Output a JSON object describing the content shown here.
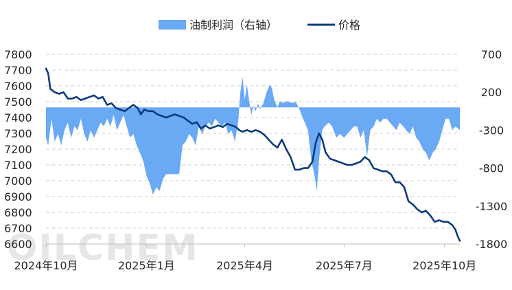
{
  "chart_data": {
    "type": "combo",
    "legend": {
      "position": "top-center",
      "items": [
        {
          "name": "油制利润（右轴）",
          "type": "area",
          "color": "#6aa9f4"
        },
        {
          "name": "价格",
          "type": "line",
          "color": "#0d3a7a"
        }
      ]
    },
    "watermark": "OILCHEM",
    "x_axis": {
      "type": "date",
      "range": [
        "2024-10-08",
        "2025-10-22"
      ],
      "ticks": [
        {
          "date": "2024-10-08",
          "label": "2024年10月"
        },
        {
          "date": "2025-01-08",
          "label": "2025年1月"
        },
        {
          "date": "2025-04-08",
          "label": "2025年4月"
        },
        {
          "date": "2025-07-08",
          "label": "2025年7月"
        },
        {
          "date": "2025-10-08",
          "label": "2025年10月"
        }
      ]
    },
    "y_left": {
      "min": 6600,
      "max": 7800,
      "ticks": [
        7800,
        7700,
        7600,
        7500,
        7400,
        7300,
        7200,
        7100,
        7000,
        6900,
        6800,
        6700,
        6600
      ]
    },
    "y_right": {
      "min": -1800,
      "max": 700,
      "ticks": [
        700,
        200,
        -300,
        -800,
        -1300,
        -1800
      ]
    },
    "grid": true,
    "series": [
      {
        "name": "油制利润（右轴）",
        "axis": "right",
        "type": "area",
        "points": [
          [
            "2024-10-08",
            -400
          ],
          [
            "2024-10-10",
            -500
          ],
          [
            "2024-10-13",
            -150
          ],
          [
            "2024-10-16",
            -450
          ],
          [
            "2024-10-19",
            -350
          ],
          [
            "2024-10-22",
            -500
          ],
          [
            "2024-10-25",
            -300
          ],
          [
            "2024-10-28",
            -200
          ],
          [
            "2024-10-31",
            -400
          ],
          [
            "2024-11-03",
            -250
          ],
          [
            "2024-11-06",
            -300
          ],
          [
            "2024-11-09",
            -150
          ],
          [
            "2024-11-12",
            -350
          ],
          [
            "2024-11-15",
            -450
          ],
          [
            "2024-11-18",
            -300
          ],
          [
            "2024-11-21",
            -400
          ],
          [
            "2024-11-24",
            -300
          ],
          [
            "2024-11-27",
            -200
          ],
          [
            "2024-11-30",
            -250
          ],
          [
            "2024-12-03",
            -150
          ],
          [
            "2024-12-06",
            -250
          ],
          [
            "2024-12-09",
            -100
          ],
          [
            "2024-12-12",
            -300
          ],
          [
            "2024-12-15",
            -200
          ],
          [
            "2024-12-18",
            -100
          ],
          [
            "2024-12-21",
            -250
          ],
          [
            "2024-12-24",
            -400
          ],
          [
            "2024-12-27",
            -350
          ],
          [
            "2024-12-30",
            -500
          ],
          [
            "2025-01-02",
            -600
          ],
          [
            "2025-01-05",
            -700
          ],
          [
            "2025-01-08",
            -900
          ],
          [
            "2025-01-11",
            -1000
          ],
          [
            "2025-01-14",
            -1150
          ],
          [
            "2025-01-17",
            -1050
          ],
          [
            "2025-01-20",
            -1100
          ],
          [
            "2025-01-23",
            -950
          ],
          [
            "2025-01-26",
            -880
          ],
          [
            "2025-01-29",
            -880
          ],
          [
            "2025-02-01",
            -880
          ],
          [
            "2025-02-04",
            -880
          ],
          [
            "2025-02-07",
            -880
          ],
          [
            "2025-02-10",
            -500
          ],
          [
            "2025-02-13",
            -450
          ],
          [
            "2025-02-16",
            -350
          ],
          [
            "2025-02-19",
            -400
          ],
          [
            "2025-02-22",
            -500
          ],
          [
            "2025-02-25",
            -250
          ],
          [
            "2025-02-28",
            -350
          ],
          [
            "2025-03-03",
            -250
          ],
          [
            "2025-03-06",
            -200
          ],
          [
            "2025-03-09",
            -250
          ],
          [
            "2025-03-12",
            -150
          ],
          [
            "2025-03-15",
            -200
          ],
          [
            "2025-03-18",
            -250
          ],
          [
            "2025-03-21",
            -200
          ],
          [
            "2025-03-24",
            -350
          ],
          [
            "2025-03-27",
            -300
          ],
          [
            "2025-03-30",
            -450
          ],
          [
            "2025-04-02",
            -200
          ],
          [
            "2025-04-04",
            200
          ],
          [
            "2025-04-06",
            400
          ],
          [
            "2025-04-08",
            100
          ],
          [
            "2025-04-10",
            300
          ],
          [
            "2025-04-12",
            100
          ],
          [
            "2025-04-14",
            -100
          ],
          [
            "2025-04-16",
            20
          ],
          [
            "2025-04-18",
            -50
          ],
          [
            "2025-04-20",
            50
          ],
          [
            "2025-04-22",
            -20
          ],
          [
            "2025-04-25",
            50
          ],
          [
            "2025-04-28",
            200
          ],
          [
            "2025-05-01",
            300
          ],
          [
            "2025-05-03",
            250
          ],
          [
            "2025-05-05",
            100
          ],
          [
            "2025-05-08",
            0
          ],
          [
            "2025-05-10",
            80
          ],
          [
            "2025-05-13",
            60
          ],
          [
            "2025-05-16",
            80
          ],
          [
            "2025-05-19",
            70
          ],
          [
            "2025-05-22",
            60
          ],
          [
            "2025-05-25",
            70
          ],
          [
            "2025-05-28",
            -20
          ],
          [
            "2025-05-30",
            -100
          ],
          [
            "2025-06-02",
            -200
          ],
          [
            "2025-06-05",
            -300
          ],
          [
            "2025-06-08",
            -700
          ],
          [
            "2025-06-11",
            -900
          ],
          [
            "2025-06-13",
            -1100
          ],
          [
            "2025-06-15",
            -700
          ],
          [
            "2025-06-18",
            -300
          ],
          [
            "2025-06-20",
            -250
          ],
          [
            "2025-06-24",
            -200
          ],
          [
            "2025-06-27",
            -250
          ],
          [
            "2025-07-01",
            -400
          ],
          [
            "2025-07-04",
            -350
          ],
          [
            "2025-07-08",
            -400
          ],
          [
            "2025-07-11",
            -350
          ],
          [
            "2025-07-14",
            -300
          ],
          [
            "2025-07-17",
            -250
          ],
          [
            "2025-07-20",
            -250
          ],
          [
            "2025-07-23",
            -400
          ],
          [
            "2025-07-26",
            -300
          ],
          [
            "2025-07-29",
            -650
          ],
          [
            "2025-08-01",
            -300
          ],
          [
            "2025-08-04",
            -250
          ],
          [
            "2025-08-07",
            -150
          ],
          [
            "2025-08-10",
            -200
          ],
          [
            "2025-08-13",
            -150
          ],
          [
            "2025-08-16",
            -150
          ],
          [
            "2025-08-19",
            -200
          ],
          [
            "2025-08-22",
            -250
          ],
          [
            "2025-08-25",
            -300
          ],
          [
            "2025-08-28",
            -200
          ],
          [
            "2025-08-31",
            -250
          ],
          [
            "2025-09-03",
            -300
          ],
          [
            "2025-09-06",
            -350
          ],
          [
            "2025-09-09",
            -250
          ],
          [
            "2025-09-12",
            -400
          ],
          [
            "2025-09-15",
            -450
          ],
          [
            "2025-09-18",
            -550
          ],
          [
            "2025-09-21",
            -600
          ],
          [
            "2025-09-24",
            -700
          ],
          [
            "2025-09-27",
            -600
          ],
          [
            "2025-09-30",
            -550
          ],
          [
            "2025-10-03",
            -450
          ],
          [
            "2025-10-06",
            -300
          ],
          [
            "2025-10-09",
            -150
          ],
          [
            "2025-10-12",
            -150
          ],
          [
            "2025-10-15",
            -300
          ],
          [
            "2025-10-18",
            -250
          ],
          [
            "2025-10-22",
            -300
          ]
        ]
      },
      {
        "name": "价格",
        "axis": "left",
        "type": "line",
        "points": [
          [
            "2024-10-08",
            7710
          ],
          [
            "2024-10-10",
            7680
          ],
          [
            "2024-10-12",
            7580
          ],
          [
            "2024-10-16",
            7560
          ],
          [
            "2024-10-20",
            7550
          ],
          [
            "2024-10-24",
            7560
          ],
          [
            "2024-10-28",
            7520
          ],
          [
            "2024-11-01",
            7520
          ],
          [
            "2024-11-05",
            7530
          ],
          [
            "2024-11-09",
            7510
          ],
          [
            "2024-11-13",
            7520
          ],
          [
            "2024-11-17",
            7530
          ],
          [
            "2024-11-21",
            7540
          ],
          [
            "2024-11-25",
            7520
          ],
          [
            "2024-11-29",
            7530
          ],
          [
            "2024-12-03",
            7480
          ],
          [
            "2024-12-07",
            7490
          ],
          [
            "2024-12-11",
            7460
          ],
          [
            "2024-12-15",
            7450
          ],
          [
            "2024-12-19",
            7440
          ],
          [
            "2024-12-23",
            7460
          ],
          [
            "2024-12-27",
            7480
          ],
          [
            "2024-12-31",
            7460
          ],
          [
            "2025-01-03",
            7420
          ],
          [
            "2025-01-06",
            7450
          ],
          [
            "2025-01-10",
            7440
          ],
          [
            "2025-01-14",
            7440
          ],
          [
            "2025-01-18",
            7420
          ],
          [
            "2025-01-22",
            7410
          ],
          [
            "2025-01-26",
            7400
          ],
          [
            "2025-01-30",
            7410
          ],
          [
            "2025-02-03",
            7420
          ],
          [
            "2025-02-07",
            7410
          ],
          [
            "2025-02-11",
            7400
          ],
          [
            "2025-02-15",
            7380
          ],
          [
            "2025-02-19",
            7360
          ],
          [
            "2025-02-23",
            7370
          ],
          [
            "2025-02-27",
            7330
          ],
          [
            "2025-03-03",
            7350
          ],
          [
            "2025-03-07",
            7330
          ],
          [
            "2025-03-11",
            7340
          ],
          [
            "2025-03-15",
            7350
          ],
          [
            "2025-03-19",
            7340
          ],
          [
            "2025-03-23",
            7360
          ],
          [
            "2025-03-27",
            7350
          ],
          [
            "2025-03-31",
            7340
          ],
          [
            "2025-04-03",
            7320
          ],
          [
            "2025-04-06",
            7310
          ],
          [
            "2025-04-10",
            7320
          ],
          [
            "2025-04-14",
            7310
          ],
          [
            "2025-04-18",
            7320
          ],
          [
            "2025-04-22",
            7310
          ],
          [
            "2025-04-26",
            7290
          ],
          [
            "2025-04-30",
            7260
          ],
          [
            "2025-05-04",
            7230
          ],
          [
            "2025-05-08",
            7210
          ],
          [
            "2025-05-12",
            7260
          ],
          [
            "2025-05-16",
            7200
          ],
          [
            "2025-05-20",
            7150
          ],
          [
            "2025-05-24",
            7070
          ],
          [
            "2025-05-28",
            7070
          ],
          [
            "2025-06-01",
            7080
          ],
          [
            "2025-06-05",
            7080
          ],
          [
            "2025-06-09",
            7120
          ],
          [
            "2025-06-12",
            7240
          ],
          [
            "2025-06-15",
            7300
          ],
          [
            "2025-06-18",
            7260
          ],
          [
            "2025-06-21",
            7180
          ],
          [
            "2025-06-25",
            7140
          ],
          [
            "2025-06-29",
            7130
          ],
          [
            "2025-07-03",
            7120
          ],
          [
            "2025-07-07",
            7110
          ],
          [
            "2025-07-11",
            7100
          ],
          [
            "2025-07-15",
            7100
          ],
          [
            "2025-07-19",
            7110
          ],
          [
            "2025-07-23",
            7120
          ],
          [
            "2025-07-27",
            7150
          ],
          [
            "2025-07-31",
            7130
          ],
          [
            "2025-08-04",
            7080
          ],
          [
            "2025-08-08",
            7070
          ],
          [
            "2025-08-12",
            7060
          ],
          [
            "2025-08-16",
            7060
          ],
          [
            "2025-08-20",
            7040
          ],
          [
            "2025-08-24",
            6990
          ],
          [
            "2025-08-28",
            6990
          ],
          [
            "2025-09-01",
            6960
          ],
          [
            "2025-09-05",
            6870
          ],
          [
            "2025-09-09",
            6850
          ],
          [
            "2025-09-13",
            6820
          ],
          [
            "2025-09-17",
            6800
          ],
          [
            "2025-09-21",
            6810
          ],
          [
            "2025-09-25",
            6780
          ],
          [
            "2025-09-29",
            6740
          ],
          [
            "2025-10-03",
            6750
          ],
          [
            "2025-10-07",
            6740
          ],
          [
            "2025-10-11",
            6740
          ],
          [
            "2025-10-15",
            6720
          ],
          [
            "2025-10-18",
            6690
          ],
          [
            "2025-10-20",
            6650
          ],
          [
            "2025-10-22",
            6620
          ]
        ]
      }
    ]
  }
}
